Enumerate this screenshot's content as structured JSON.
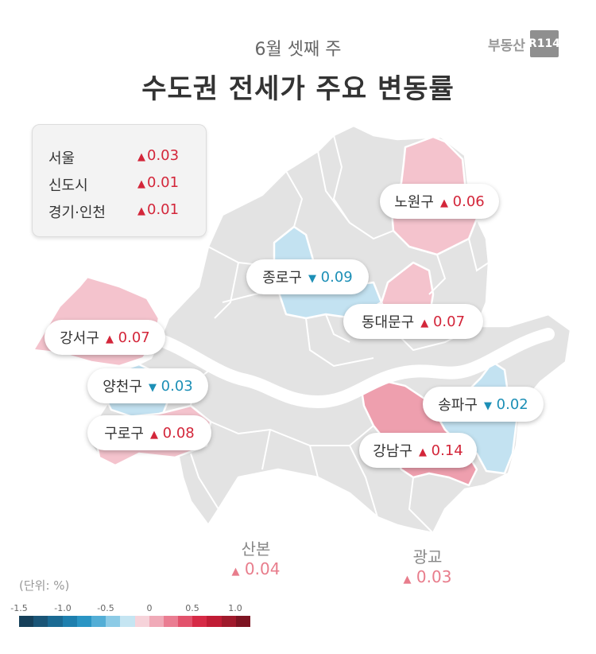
{
  "header": {
    "subtitle": "6월 셋째 주",
    "title": "수도권 전세가 주요 변동률",
    "logo_text": "부동산",
    "logo_box": "R114"
  },
  "summary": [
    {
      "label": "서울",
      "value": "0.03",
      "dir": "up"
    },
    {
      "label": "신도시",
      "value": "0.01",
      "dir": "up"
    },
    {
      "label": "경기·인천",
      "value": "0.01",
      "dir": "up"
    }
  ],
  "districts": [
    {
      "name": "노원구",
      "value": "0.06",
      "dir": "up"
    },
    {
      "name": "종로구",
      "value": "0.09",
      "dir": "down"
    },
    {
      "name": "동대문구",
      "value": "0.07",
      "dir": "up"
    },
    {
      "name": "강서구",
      "value": "0.07",
      "dir": "up"
    },
    {
      "name": "양천구",
      "value": "0.03",
      "dir": "down"
    },
    {
      "name": "구로구",
      "value": "0.08",
      "dir": "up"
    },
    {
      "name": "송파구",
      "value": "0.02",
      "dir": "down"
    },
    {
      "name": "강남구",
      "value": "0.14",
      "dir": "up"
    }
  ],
  "outside": [
    {
      "name": "산본",
      "value": "0.04",
      "dir": "up"
    },
    {
      "name": "광교",
      "value": "0.03",
      "dir": "up"
    }
  ],
  "symbols": {
    "up": "▲",
    "down": "▼"
  },
  "scale": {
    "unit_label": "(단위:  %)",
    "ticks": [
      "-1.5",
      "-1.0",
      "-0.5",
      "0",
      "0.5",
      "1.0"
    ],
    "colors": [
      "#16405a",
      "#1a5577",
      "#1b6a93",
      "#1e7fae",
      "#2a95c4",
      "#53aed6",
      "#8ccbe6",
      "#c5e5f2",
      "#f6d3da",
      "#f0aab8",
      "#ea7d92",
      "#e2526c",
      "#d62a46",
      "#c01c35",
      "#a01a2c",
      "#7d1422"
    ]
  },
  "map_colors": {
    "gray": "#e3e3e3",
    "border": "#ffffff",
    "red_light": "#f4c3cd",
    "red_mid": "#ee9fae",
    "blue_light": "#c3e2f1",
    "river": "#ffffff"
  }
}
